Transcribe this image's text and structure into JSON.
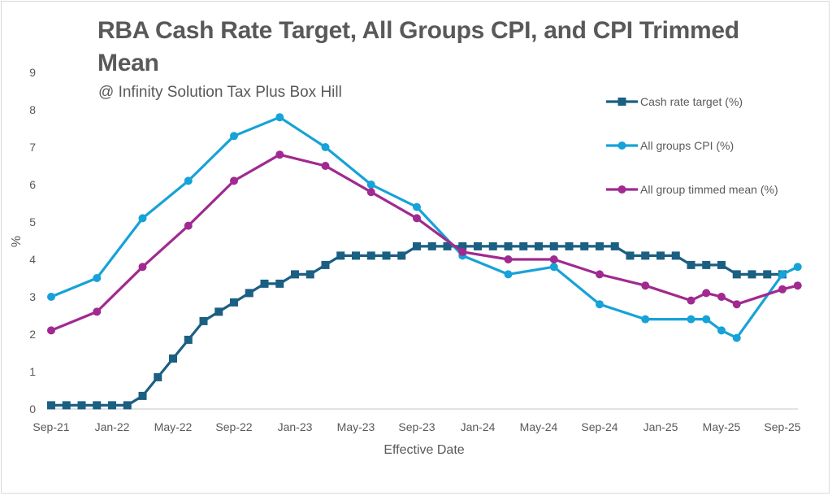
{
  "chart_data": {
    "type": "line",
    "title": "RBA Cash Rate Target, All Groups CPI, and CPI Trimmed Mean",
    "subtitle": "@ Infinity Solution Tax Plus Box Hill",
    "xlabel": "Effective Date",
    "ylabel": "%",
    "ylim": [
      0,
      9
    ],
    "yticks": [
      "0",
      "1",
      "2",
      "3",
      "4",
      "5",
      "6",
      "7",
      "8",
      "9"
    ],
    "xticks": [
      "Sep-21",
      "Jan-22",
      "May-22",
      "Sep-22",
      "Jan-23",
      "May-23",
      "Sep-23",
      "Jan-24",
      "May-24",
      "Sep-24",
      "Jan-25",
      "May-25",
      "Sep-25"
    ],
    "x_range": [
      "2021-09",
      "2025-10"
    ],
    "grid": false,
    "legend_position": "top-right",
    "series": [
      {
        "name": "Cash rate target (%)",
        "color": "#1b5f82",
        "marker": "square",
        "points": [
          [
            "2021-09",
            0.1
          ],
          [
            "2021-10",
            0.1
          ],
          [
            "2021-11",
            0.1
          ],
          [
            "2021-12",
            0.1
          ],
          [
            "2022-01",
            0.1
          ],
          [
            "2022-02",
            0.1
          ],
          [
            "2022-03",
            0.35
          ],
          [
            "2022-04",
            0.85
          ],
          [
            "2022-05",
            1.35
          ],
          [
            "2022-06",
            1.85
          ],
          [
            "2022-07",
            2.35
          ],
          [
            "2022-08",
            2.6
          ],
          [
            "2022-09",
            2.85
          ],
          [
            "2022-10",
            3.1
          ],
          [
            "2022-11",
            3.35
          ],
          [
            "2022-12",
            3.35
          ],
          [
            "2023-01",
            3.6
          ],
          [
            "2023-02",
            3.6
          ],
          [
            "2023-03",
            3.85
          ],
          [
            "2023-04",
            4.1
          ],
          [
            "2023-05",
            4.1
          ],
          [
            "2023-06",
            4.1
          ],
          [
            "2023-07",
            4.1
          ],
          [
            "2023-08",
            4.1
          ],
          [
            "2023-09",
            4.35
          ],
          [
            "2023-10",
            4.35
          ],
          [
            "2023-11",
            4.35
          ],
          [
            "2023-12",
            4.35
          ],
          [
            "2024-01",
            4.35
          ],
          [
            "2024-02",
            4.35
          ],
          [
            "2024-03",
            4.35
          ],
          [
            "2024-04",
            4.35
          ],
          [
            "2024-05",
            4.35
          ],
          [
            "2024-06",
            4.35
          ],
          [
            "2024-07",
            4.35
          ],
          [
            "2024-08",
            4.35
          ],
          [
            "2024-09",
            4.35
          ],
          [
            "2024-10",
            4.35
          ],
          [
            "2024-11",
            4.1
          ],
          [
            "2024-12",
            4.1
          ],
          [
            "2025-01",
            4.1
          ],
          [
            "2025-02",
            4.1
          ],
          [
            "2025-03",
            3.85
          ],
          [
            "2025-04",
            3.85
          ],
          [
            "2025-05",
            3.85
          ],
          [
            "2025-06",
            3.6
          ],
          [
            "2025-07",
            3.6
          ],
          [
            "2025-08",
            3.6
          ],
          [
            "2025-09",
            3.6
          ]
        ]
      },
      {
        "name": "All groups CPI (%)",
        "color": "#17a2d8",
        "marker": "circle",
        "points": [
          [
            "2021-09",
            3.0
          ],
          [
            "2021-12",
            3.5
          ],
          [
            "2022-03",
            5.1
          ],
          [
            "2022-06",
            6.1
          ],
          [
            "2022-09",
            7.3
          ],
          [
            "2022-12",
            7.8
          ],
          [
            "2023-03",
            7.0
          ],
          [
            "2023-06",
            6.0
          ],
          [
            "2023-09",
            5.4
          ],
          [
            "2023-12",
            4.1
          ],
          [
            "2024-03",
            3.6
          ],
          [
            "2024-06",
            3.8
          ],
          [
            "2024-09",
            2.8
          ],
          [
            "2024-12",
            2.4
          ],
          [
            "2025-03",
            2.4
          ],
          [
            "2025-04",
            2.4
          ],
          [
            "2025-05",
            2.1
          ],
          [
            "2025-06",
            1.9
          ],
          [
            "2025-09",
            3.6
          ],
          [
            "2025-10",
            3.8
          ]
        ]
      },
      {
        "name": "All group timmed mean (%)",
        "color": "#a02a90",
        "marker": "circle",
        "points": [
          [
            "2021-09",
            2.1
          ],
          [
            "2021-12",
            2.6
          ],
          [
            "2022-03",
            3.8
          ],
          [
            "2022-06",
            4.9
          ],
          [
            "2022-09",
            6.1
          ],
          [
            "2022-12",
            6.8
          ],
          [
            "2023-03",
            6.5
          ],
          [
            "2023-06",
            5.8
          ],
          [
            "2023-09",
            5.1
          ],
          [
            "2023-12",
            4.2
          ],
          [
            "2024-03",
            4.0
          ],
          [
            "2024-06",
            4.0
          ],
          [
            "2024-09",
            3.6
          ],
          [
            "2024-12",
            3.3
          ],
          [
            "2025-03",
            2.9
          ],
          [
            "2025-04",
            3.1
          ],
          [
            "2025-05",
            3.0
          ],
          [
            "2025-06",
            2.8
          ],
          [
            "2025-09",
            3.2
          ],
          [
            "2025-10",
            3.3
          ]
        ]
      }
    ]
  }
}
